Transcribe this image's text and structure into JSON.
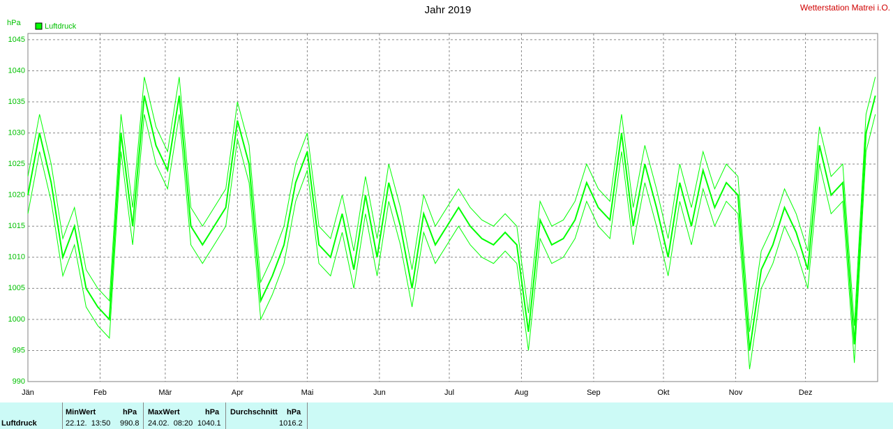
{
  "chart_data": {
    "type": "line",
    "title": "Jahr 2019",
    "station": "Wetterstation Matrei i.O.",
    "y_unit": "hPa",
    "x": [
      0,
      5,
      10,
      15,
      20,
      25,
      30,
      35,
      40,
      45,
      50,
      55,
      60,
      65,
      70,
      75,
      80,
      85,
      90,
      95,
      100,
      105,
      110,
      115,
      120,
      125,
      130,
      135,
      140,
      145,
      150,
      155,
      160,
      165,
      170,
      175,
      180,
      185,
      190,
      195,
      200,
      205,
      210,
      215,
      220,
      225,
      230,
      235,
      240,
      245,
      250,
      255,
      260,
      265,
      270,
      275,
      280,
      285,
      290,
      295,
      300,
      305,
      310,
      315,
      320,
      325,
      330,
      335,
      340,
      345,
      350,
      355,
      360,
      364
    ],
    "series": [
      {
        "name": "Luftdruck",
        "color": "#00ff00",
        "values": [
          1020,
          1030,
          1022,
          1010,
          1015,
          1005,
          1002,
          1000,
          1030,
          1015,
          1036,
          1028,
          1024,
          1036,
          1015,
          1012,
          1015,
          1018,
          1032,
          1025,
          1003,
          1007,
          1012,
          1022,
          1027,
          1012,
          1010,
          1017,
          1008,
          1020,
          1010,
          1022,
          1015,
          1005,
          1017,
          1012,
          1015,
          1018,
          1015,
          1013,
          1012,
          1014,
          1012,
          998,
          1016,
          1012,
          1013,
          1016,
          1022,
          1018,
          1016,
          1030,
          1015,
          1025,
          1018,
          1010,
          1022,
          1015,
          1024,
          1018,
          1022,
          1020,
          995,
          1008,
          1012,
          1018,
          1014,
          1008,
          1028,
          1020,
          1022,
          996,
          1030,
          1036
        ]
      },
      {
        "color": "#00ff00",
        "values": [
          1023,
          1033,
          1025,
          1013,
          1018,
          1008,
          1005,
          1003,
          1033,
          1018,
          1039,
          1031,
          1027,
          1039,
          1018,
          1015,
          1018,
          1021,
          1035,
          1028,
          1006,
          1010,
          1015,
          1025,
          1030,
          1015,
          1013,
          1020,
          1011,
          1023,
          1013,
          1025,
          1018,
          1008,
          1020,
          1015,
          1018,
          1021,
          1018,
          1016,
          1015,
          1017,
          1015,
          1001,
          1019,
          1015,
          1016,
          1019,
          1025,
          1021,
          1019,
          1033,
          1018,
          1028,
          1021,
          1013,
          1025,
          1018,
          1027,
          1021,
          1025,
          1023,
          998,
          1011,
          1015,
          1021,
          1017,
          1011,
          1031,
          1023,
          1025,
          999,
          1033,
          1039
        ]
      },
      {
        "color": "#00ff00",
        "values": [
          1017,
          1027,
          1019,
          1007,
          1012,
          1002,
          999,
          997,
          1027,
          1012,
          1033,
          1025,
          1021,
          1033,
          1012,
          1009,
          1012,
          1015,
          1029,
          1022,
          1000,
          1004,
          1009,
          1019,
          1024,
          1009,
          1007,
          1014,
          1005,
          1017,
          1007,
          1019,
          1012,
          1002,
          1014,
          1009,
          1012,
          1015,
          1012,
          1010,
          1009,
          1011,
          1009,
          995,
          1013,
          1009,
          1010,
          1013,
          1019,
          1015,
          1013,
          1027,
          1012,
          1022,
          1015,
          1007,
          1019,
          1012,
          1021,
          1015,
          1019,
          1017,
          992,
          1005,
          1009,
          1015,
          1011,
          1005,
          1025,
          1017,
          1019,
          993,
          1027,
          1033
        ]
      }
    ],
    "xlim": [
      0,
      365
    ],
    "xticks": [
      {
        "value": 0,
        "label": "Jän"
      },
      {
        "value": 31,
        "label": "Feb"
      },
      {
        "value": 59,
        "label": "Mär"
      },
      {
        "value": 90,
        "label": "Apr"
      },
      {
        "value": 120,
        "label": "Mai"
      },
      {
        "value": 151,
        "label": "Jun"
      },
      {
        "value": 181,
        "label": "Jul"
      },
      {
        "value": 212,
        "label": "Aug"
      },
      {
        "value": 243,
        "label": "Sep"
      },
      {
        "value": 273,
        "label": "Okt"
      },
      {
        "value": 304,
        "label": "Nov"
      },
      {
        "value": 334,
        "label": "Dez"
      }
    ],
    "ylim": [
      990,
      1046
    ],
    "yticks": [
      990,
      995,
      1000,
      1005,
      1010,
      1015,
      1020,
      1025,
      1030,
      1035,
      1040,
      1045
    ],
    "grid": true,
    "stats": {
      "name": "Luftdruck",
      "min": {
        "label": "MinWert",
        "unit": "hPa",
        "time": "22.12.  13:50",
        "value": "990.8"
      },
      "max": {
        "label": "MaxWert",
        "unit": "hPa",
        "time": "24.02.  08:20",
        "value": "1040.1"
      },
      "avg": {
        "label": "Durchschnitt",
        "unit": "hPa",
        "value": "1016.2"
      }
    }
  }
}
